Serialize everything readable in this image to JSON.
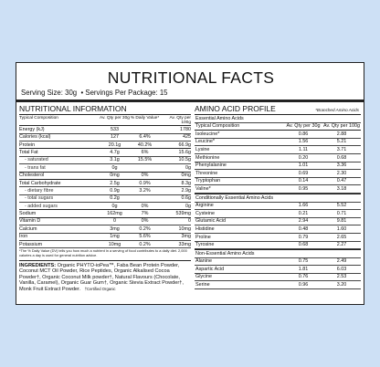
{
  "title": "NUTRITIONAL FACTS",
  "serving_size": "Serving Size: 30g",
  "servings_per_package": "• Servings Per Package: 15",
  "nutrition": {
    "heading": "NUTRITIONAL INFORMATION",
    "columns": [
      "Typical Composition",
      "Av. Qty per 30g",
      "% Daily Value*",
      "Av. Qty per 100g"
    ],
    "rows": [
      {
        "name": "Energy",
        "unit": "(kJ)",
        "q30": "533",
        "dv": "",
        "q100": "1780",
        "sub": false
      },
      {
        "name": "Calories",
        "unit": "(kcal)",
        "q30": "127",
        "dv": "6.4%",
        "q100": "425",
        "sub": false
      },
      {
        "name": "Protein",
        "unit": "",
        "q30": "20.1g",
        "dv": "40.2%",
        "q100": "66.9g",
        "sub": false
      },
      {
        "name": "Total Fat",
        "unit": "",
        "q30": "4.7g",
        "dv": "6%",
        "q100": "15.6g",
        "sub": false
      },
      {
        "name": "- saturated",
        "unit": "",
        "q30": "3.1g",
        "dv": "15.5%",
        "q100": "10.5g",
        "sub": true
      },
      {
        "name": "- trans fat",
        "unit": "",
        "q30": "0g",
        "dv": "",
        "q100": "0g",
        "sub": true
      },
      {
        "name": "Cholesterol",
        "unit": "",
        "q30": "0mg",
        "dv": "0%",
        "q100": "0mg",
        "sub": false
      },
      {
        "name": "Total Carbohydrate",
        "unit": "",
        "q30": "2.5g",
        "dv": "0.9%",
        "q100": "8.3g",
        "sub": false
      },
      {
        "name": "- dietary fibre",
        "unit": "",
        "q30": "0.9g",
        "dv": "3.2%",
        "q100": "2.9g",
        "sub": true
      },
      {
        "name": "- total sugars",
        "unit": "",
        "q30": "0.2g",
        "dv": "",
        "q100": "0.6g",
        "sub": true
      },
      {
        "name": "- added sugars",
        "unit": "",
        "q30": "0g",
        "dv": "0%",
        "q100": "0g",
        "sub": true
      },
      {
        "name": "Sodium",
        "unit": "",
        "q30": "162mg",
        "dv": "7%",
        "q100": "539mg",
        "sub": false
      },
      {
        "name": "Vitamin D",
        "unit": "",
        "q30": "0",
        "dv": "0%",
        "q100": "0",
        "sub": false
      },
      {
        "name": "Calcium",
        "unit": "",
        "q30": "3mg",
        "dv": "0.2%",
        "q100": "10mg",
        "sub": false
      },
      {
        "name": "Iron",
        "unit": "",
        "q30": "1mg",
        "dv": "5.6%",
        "q100": "3mg",
        "sub": false
      },
      {
        "name": "Potassium",
        "unit": "",
        "q30": "10mg",
        "dv": "0.2%",
        "q100": "33mg",
        "sub": false
      }
    ],
    "footnote": "*The % Daily Value (DV) tells you how much a nutrient in a serving of food contributes to a daily diet. 2,000 calories a day is used for general nutrition advice."
  },
  "ingredients": {
    "label": "INGREDIENTS:",
    "text": "Organic PHYTO-ioPea™, Faba Bean Protein Powder, Coconut MCT Oil Powder, Rice Peptides, Organic Alkalised Cocoa Powder†, Organic Coconut Milk powder†, Natural Flavours (Chocolate, Vanilla, Caramel), Organic Guar Gum†, Organic Stevia Extract Powder†, Monk Fruit Extract Powder.",
    "certified": "†Certified Organic"
  },
  "amino": {
    "heading": "AMINO ACID PROFILE",
    "note": "*Branched Amino Acids",
    "columns": [
      "Typical Composition",
      "Av. Qty per 30g",
      "Av. Qty per 100g"
    ],
    "groups": [
      {
        "name": "Essential Amino Acids",
        "rows": [
          {
            "name": "Isoleucine*",
            "q30": "0.86",
            "q100": "2.88"
          },
          {
            "name": "Leucine*",
            "q30": "1.56",
            "q100": "5.21"
          },
          {
            "name": "Lysine",
            "q30": "1.11",
            "q100": "3.71"
          },
          {
            "name": "Methionine",
            "q30": "0.20",
            "q100": "0.68"
          },
          {
            "name": "Phenylalanine",
            "q30": "1.01",
            "q100": "3.36"
          },
          {
            "name": "Threonine",
            "q30": "0.69",
            "q100": "2.30"
          },
          {
            "name": "Tryptophan",
            "q30": "0.14",
            "q100": "0.47"
          },
          {
            "name": "Valine*",
            "q30": "0.95",
            "q100": "3.18"
          }
        ]
      },
      {
        "name": "Conditionally Essential Amino Acids",
        "rows": [
          {
            "name": "Arginine",
            "q30": "1.66",
            "q100": "5.52"
          },
          {
            "name": "Cysteine",
            "q30": "0.21",
            "q100": "0.71"
          },
          {
            "name": "Glutamic Acid",
            "q30": "2.94",
            "q100": "9.81"
          },
          {
            "name": "Histidine",
            "q30": "0.48",
            "q100": "1.60"
          },
          {
            "name": "Proline",
            "q30": "0.79",
            "q100": "2.65"
          },
          {
            "name": "Tyrosine",
            "q30": "0.68",
            "q100": "2.27"
          }
        ]
      },
      {
        "name": "Non-Essential Amino Acids",
        "rows": [
          {
            "name": "Alanine",
            "q30": "0.75",
            "q100": "2.49"
          },
          {
            "name": "Aspartic Acid",
            "q30": "1.81",
            "q100": "6.03"
          },
          {
            "name": "Glycine",
            "q30": "0.76",
            "q100": "2.53"
          },
          {
            "name": "Serine",
            "q30": "0.96",
            "q100": "3.20"
          }
        ]
      }
    ]
  }
}
